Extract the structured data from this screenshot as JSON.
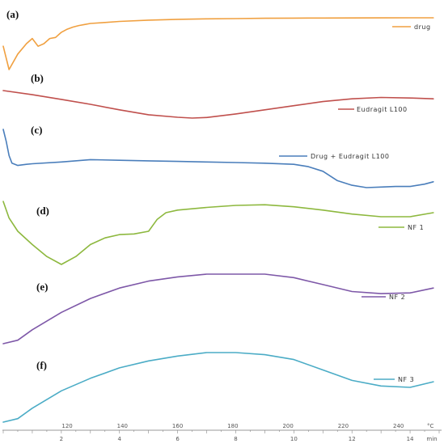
{
  "chart_data": {
    "type": "line",
    "panels": [
      {
        "label": "(a)",
        "legend": "drug",
        "color": "#f0a040",
        "x": [
          0.0,
          0.2,
          0.5,
          0.8,
          1.0,
          1.2,
          1.4,
          1.6,
          1.8,
          2.0,
          2.2,
          2.4,
          2.6,
          2.8,
          3.0,
          3.5,
          4.0,
          5.0,
          6.0,
          7.0,
          8.0,
          9.0,
          10.0,
          11.0,
          12.0,
          13.0,
          14.0,
          14.8
        ],
        "y": [
          0.45,
          0.0,
          0.3,
          0.5,
          0.6,
          0.45,
          0.5,
          0.6,
          0.62,
          0.72,
          0.78,
          0.82,
          0.85,
          0.87,
          0.89,
          0.91,
          0.93,
          0.955,
          0.97,
          0.98,
          0.985,
          0.99,
          0.993,
          0.995,
          0.997,
          0.998,
          1.0,
          1.0
        ]
      },
      {
        "label": "(b)",
        "legend": "Eudragit L100",
        "color": "#c0504d",
        "x": [
          0.0,
          1.0,
          2.0,
          3.0,
          4.0,
          5.0,
          6.0,
          6.5,
          7.0,
          8.0,
          9.0,
          10.0,
          11.0,
          12.0,
          13.0,
          14.0,
          14.8
        ],
        "y": [
          1.0,
          0.85,
          0.68,
          0.5,
          0.3,
          0.12,
          0.03,
          0.0,
          0.02,
          0.15,
          0.3,
          0.45,
          0.6,
          0.7,
          0.75,
          0.73,
          0.7
        ]
      },
      {
        "label": "(c)",
        "legend": "Drug + Eudragit L100",
        "color": "#4a7ebb",
        "x": [
          0.0,
          0.1,
          0.2,
          0.3,
          0.5,
          0.8,
          1.0,
          2.0,
          3.0,
          4.0,
          5.0,
          6.0,
          7.0,
          8.0,
          9.0,
          10.0,
          10.5,
          11.0,
          11.5,
          12.0,
          12.5,
          13.0,
          13.5,
          14.0,
          14.5,
          14.8
        ],
        "y": [
          1.0,
          0.8,
          0.55,
          0.42,
          0.38,
          0.4,
          0.41,
          0.44,
          0.48,
          0.47,
          0.46,
          0.45,
          0.44,
          0.43,
          0.42,
          0.4,
          0.36,
          0.28,
          0.12,
          0.04,
          0.0,
          0.01,
          0.02,
          0.02,
          0.06,
          0.1
        ]
      },
      {
        "label": "(d)",
        "legend": "NF 1",
        "color": "#8db83e",
        "x": [
          0.0,
          0.2,
          0.5,
          1.0,
          1.5,
          2.0,
          2.5,
          3.0,
          3.5,
          4.0,
          4.5,
          5.0,
          5.3,
          5.6,
          6.0,
          7.0,
          8.0,
          9.0,
          10.0,
          11.0,
          12.0,
          13.0,
          14.0,
          14.8
        ],
        "y": [
          0.95,
          0.7,
          0.5,
          0.3,
          0.12,
          0.0,
          0.12,
          0.3,
          0.4,
          0.45,
          0.46,
          0.5,
          0.68,
          0.78,
          0.82,
          0.86,
          0.89,
          0.9,
          0.87,
          0.82,
          0.76,
          0.72,
          0.72,
          0.78
        ]
      },
      {
        "label": "(e)",
        "legend": "NF 2",
        "color": "#7e58a8",
        "x": [
          0.0,
          0.5,
          1.0,
          2.0,
          3.0,
          4.0,
          5.0,
          6.0,
          7.0,
          8.0,
          9.0,
          10.0,
          11.0,
          12.0,
          13.0,
          14.0,
          14.8
        ],
        "y": [
          0.0,
          0.05,
          0.2,
          0.45,
          0.65,
          0.8,
          0.9,
          0.96,
          1.0,
          1.0,
          1.0,
          0.95,
          0.85,
          0.75,
          0.72,
          0.73,
          0.8
        ]
      },
      {
        "label": "(f)",
        "legend": "NF 3",
        "color": "#4bacc6",
        "x": [
          0.0,
          0.5,
          1.0,
          2.0,
          3.0,
          4.0,
          5.0,
          6.0,
          7.0,
          8.0,
          9.0,
          10.0,
          11.0,
          12.0,
          13.0,
          14.0,
          14.8
        ],
        "y": [
          0.0,
          0.05,
          0.2,
          0.45,
          0.63,
          0.78,
          0.88,
          0.95,
          1.0,
          1.0,
          0.97,
          0.9,
          0.75,
          0.6,
          0.52,
          0.5,
          0.58
        ]
      }
    ],
    "x_top_ticks": [
      "120",
      "140",
      "160",
      "180",
      "200",
      "220",
      "240",
      "°C"
    ],
    "x_bottom_ticks": [
      "2",
      "4",
      "6",
      "8",
      "10",
      "12",
      "14",
      "min"
    ],
    "xlim": [
      0,
      15
    ]
  }
}
